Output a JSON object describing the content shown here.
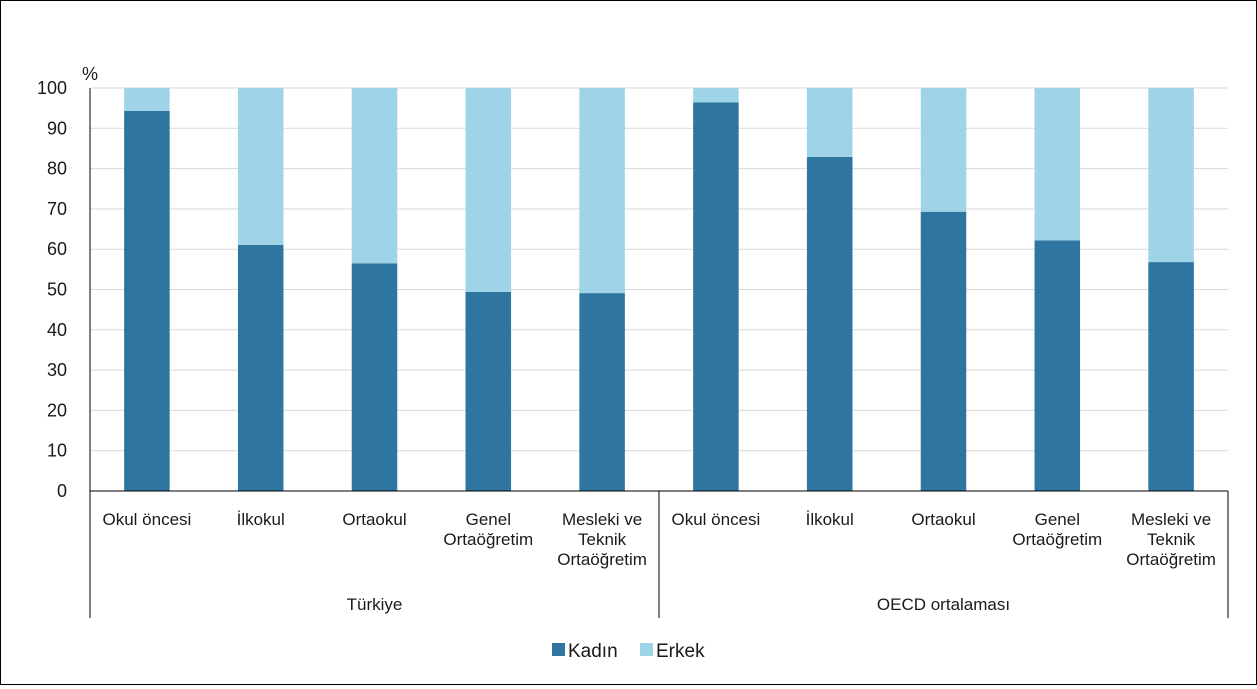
{
  "chart_data": {
    "type": "bar",
    "stacked": true,
    "y_unit": "%",
    "ylim": [
      0,
      100
    ],
    "yticks": [
      0,
      10,
      20,
      30,
      40,
      50,
      60,
      70,
      80,
      90,
      100
    ],
    "grid": true,
    "legend_position": "bottom",
    "groups": [
      {
        "label": "Türkiye",
        "categories": [
          [
            "Okul öncesi"
          ],
          [
            "İlkokul"
          ],
          [
            "Ortaokul"
          ],
          [
            "Genel",
            "Ortaöğretim"
          ],
          [
            "Mesleki ve",
            "Teknik",
            "Ortaöğretim"
          ]
        ]
      },
      {
        "label": "OECD ortalaması",
        "categories": [
          [
            "Okul öncesi"
          ],
          [
            "İlkokul"
          ],
          [
            "Ortaokul"
          ],
          [
            "Genel",
            "Ortaöğretim"
          ],
          [
            "Mesleki ve",
            "Teknik",
            "Ortaöğretim"
          ]
        ]
      }
    ],
    "series": [
      {
        "name": "Kadın",
        "color": "#2e75a0",
        "values": [
          94.3,
          61.1,
          56.5,
          49.4,
          49.1,
          96.4,
          82.9,
          69.3,
          62.2,
          56.8
        ]
      },
      {
        "name": "Erkek",
        "color": "#9fd3e8",
        "values": [
          5.7,
          38.9,
          43.5,
          50.6,
          50.9,
          3.6,
          17.1,
          30.7,
          37.8,
          43.2
        ]
      }
    ]
  }
}
